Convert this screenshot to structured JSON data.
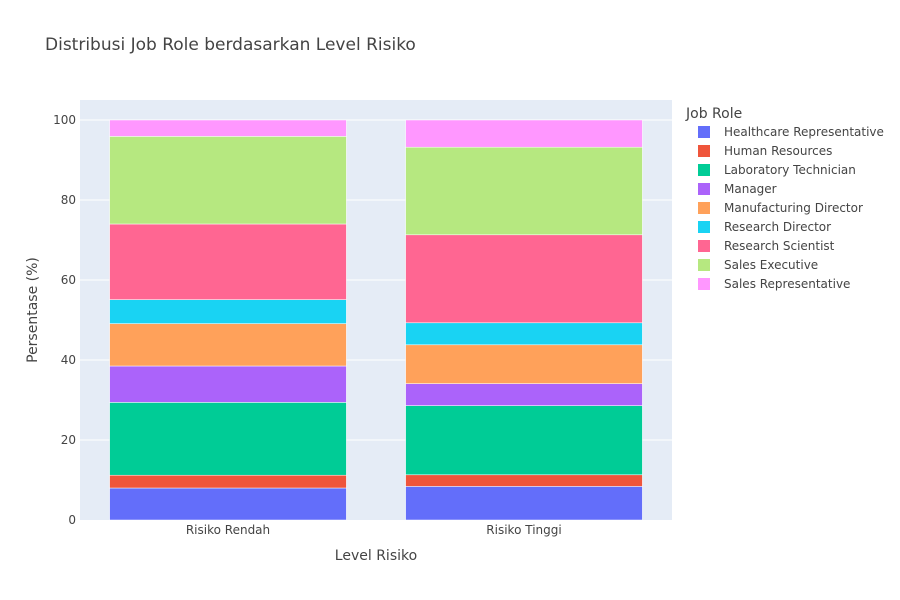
{
  "chart_data": {
    "type": "bar",
    "stacked": true,
    "title": "Distribusi Job Role berdasarkan Level Risiko",
    "xlabel": "Level Risiko",
    "ylabel": "Persentase (%)",
    "ylim": [
      0,
      105
    ],
    "yticks": [
      0,
      20,
      40,
      60,
      80,
      100
    ],
    "grid": true,
    "legend_title": "Job Role",
    "legend_position": "right",
    "categories": [
      "Risiko Rendah",
      "Risiko Tinggi"
    ],
    "series": [
      {
        "name": "Healthcare Representative",
        "color": "#636efa",
        "values": [
          8.0,
          8.4
        ]
      },
      {
        "name": "Human Resources",
        "color": "#ef553b",
        "values": [
          3.2,
          2.9
        ]
      },
      {
        "name": "Laboratory Technician",
        "color": "#00cc96",
        "values": [
          18.2,
          17.3
        ]
      },
      {
        "name": "Manager",
        "color": "#ab63fa",
        "values": [
          9.1,
          5.5
        ]
      },
      {
        "name": "Manufacturing Director",
        "color": "#ffa15a",
        "values": [
          10.6,
          9.7
        ]
      },
      {
        "name": "Research Director",
        "color": "#19d3f3",
        "values": [
          6.0,
          5.5
        ]
      },
      {
        "name": "Research Scientist",
        "color": "#ff6692",
        "values": [
          18.9,
          22.0
        ]
      },
      {
        "name": "Sales Executive",
        "color": "#b6e880",
        "values": [
          21.9,
          21.9
        ]
      },
      {
        "name": "Sales Representative",
        "color": "#ff97ff",
        "values": [
          4.1,
          6.8
        ]
      }
    ]
  }
}
